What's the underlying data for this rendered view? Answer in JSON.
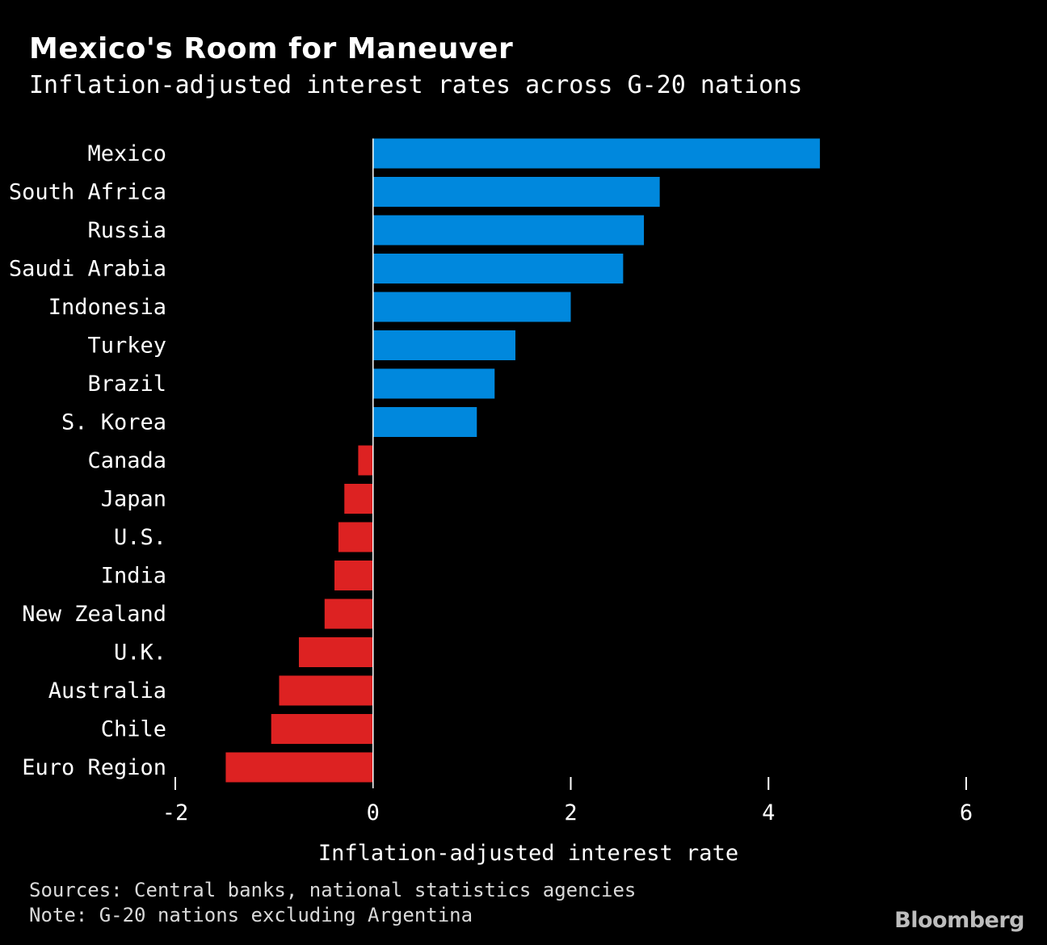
{
  "header": {
    "title": "Mexico's Room for Maneuver",
    "subtitle": "Inflation-adjusted interest rates across G-20 nations"
  },
  "footer": {
    "source": "Sources: Central banks, national statistics agencies",
    "note": "Note: G-20 nations excluding Argentina",
    "brand": "Bloomberg"
  },
  "colors": {
    "background": "#000000",
    "positive": "#0088dd",
    "negative": "#dd2222",
    "text": "#ffffff"
  },
  "chart_data": {
    "type": "bar",
    "orientation": "horizontal",
    "categories": [
      "Mexico",
      "South Africa",
      "Russia",
      "Saudi Arabia",
      "Indonesia",
      "Turkey",
      "Brazil",
      "S. Korea",
      "Canada",
      "Japan",
      "U.S.",
      "India",
      "New Zealand",
      "U.K.",
      "Australia",
      "Chile",
      "Euro Region"
    ],
    "values": [
      4.52,
      2.9,
      2.74,
      2.53,
      2.0,
      1.44,
      1.23,
      1.05,
      -0.15,
      -0.29,
      -0.35,
      -0.39,
      -0.49,
      -0.75,
      -0.95,
      -1.03,
      -1.49
    ],
    "xlabel": "Inflation-adjusted interest rate",
    "ylabel": "",
    "xlim": [
      -2,
      6
    ],
    "xticks": [
      "-2",
      "0",
      "2",
      "4",
      "6"
    ],
    "grid": false,
    "legend": "none"
  }
}
